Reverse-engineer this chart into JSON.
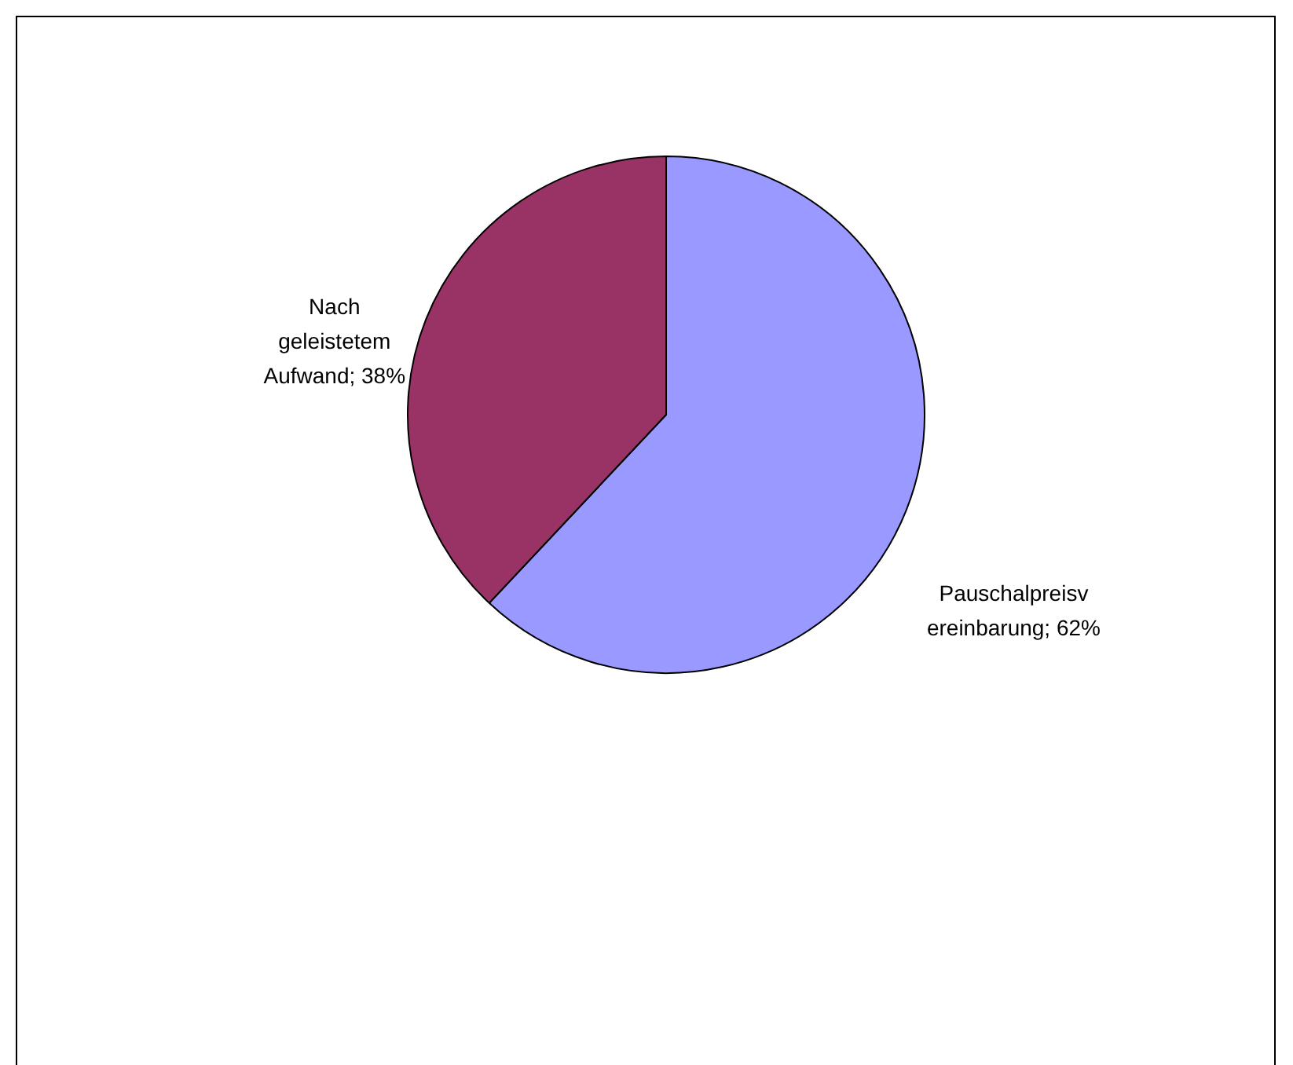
{
  "chart_data": {
    "type": "pie",
    "categories": [
      "Pauschalpreisvereinbarung",
      "Nach geleistetem Aufwand"
    ],
    "values": [
      62,
      38
    ],
    "value_labels": [
      "62%",
      "38%"
    ],
    "colors": [
      "#9999ff",
      "#993366"
    ],
    "legend": false
  }
}
